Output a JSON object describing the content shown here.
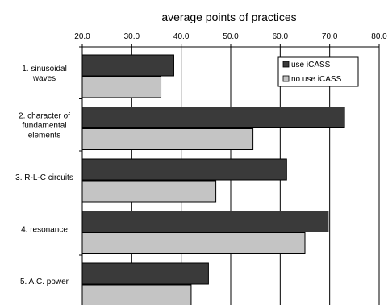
{
  "chart_data": {
    "type": "bar",
    "orientation": "horizontal",
    "title": "average points of practices",
    "xlabel": "",
    "ylabel": "",
    "xlim": [
      20,
      80
    ],
    "x_ticks": [
      "20.0",
      "30.0",
      "40.0",
      "50.0",
      "60.0",
      "70.0",
      "80.0"
    ],
    "x_axis_position": "top",
    "grid": "vertical",
    "legend_position": "top-right",
    "categories": [
      [
        "1. sinusoidal",
        "waves"
      ],
      [
        "2. character of",
        "fundamental",
        "elements"
      ],
      [
        "3. R-L-C circuits"
      ],
      [
        "4. resonance"
      ],
      [
        "5. A.C. power"
      ]
    ],
    "series": [
      {
        "name": "use iCASS",
        "color": "#3a3a3a",
        "values": [
          38.5,
          73.0,
          61.3,
          69.7,
          45.5
        ]
      },
      {
        "name": "no use iCASS",
        "color": "#c4c4c4",
        "values": [
          35.9,
          54.5,
          47.0,
          65.0,
          42.0
        ]
      }
    ]
  }
}
